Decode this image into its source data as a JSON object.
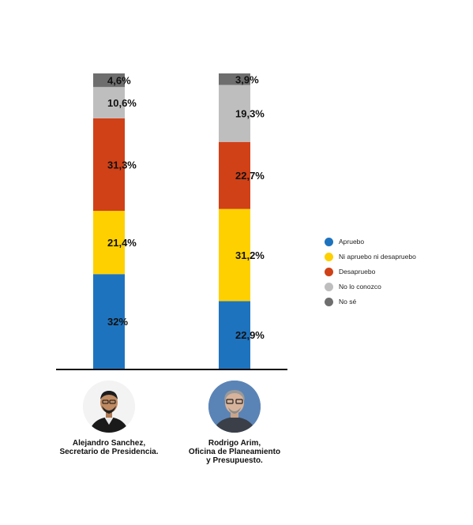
{
  "chart_data": {
    "type": "stacked-bar",
    "title": "",
    "xlabel": "",
    "ylabel": "",
    "ylim": [
      0,
      100
    ],
    "categories": [
      "Alejandro Sanchez, Secretario de Presidencia.",
      "Rodrigo Arim, Oficina de Planeamiento y Presupuesto."
    ],
    "series": [
      {
        "name": "Apruebo",
        "color": "#1e73be",
        "values": [
          32,
          22.9
        ],
        "labels": [
          "32%",
          "22,9%"
        ]
      },
      {
        "name": "Ni apruebo ni desapruebo",
        "color": "#fed000",
        "values": [
          21.4,
          31.2
        ],
        "labels": [
          "21,4%",
          "31,2%"
        ]
      },
      {
        "name": "Desapruebo",
        "color": "#d04117",
        "values": [
          31.3,
          22.7
        ],
        "labels": [
          "31,3%",
          "22,7%"
        ]
      },
      {
        "name": "No lo conozco",
        "color": "#bfbebe",
        "values": [
          10.6,
          19.3
        ],
        "labels": [
          "10,6%",
          "19,3%"
        ]
      },
      {
        "name": "No sé",
        "color": "#6e6e6e",
        "values": [
          4.6,
          3.9
        ],
        "labels": [
          "4,6%",
          "3,9%"
        ]
      }
    ],
    "legend_position": "right",
    "grid": false
  },
  "people": [
    {
      "name_line1": "Alejandro Sanchez,",
      "name_line2": "Secretario de Presidencia.",
      "name_line3": ""
    },
    {
      "name_line1": "Rodrigo Arim,",
      "name_line2": "Oficina de Planeamiento",
      "name_line3": "y Presupuesto."
    }
  ],
  "colors": {
    "baseline": "#111111"
  }
}
